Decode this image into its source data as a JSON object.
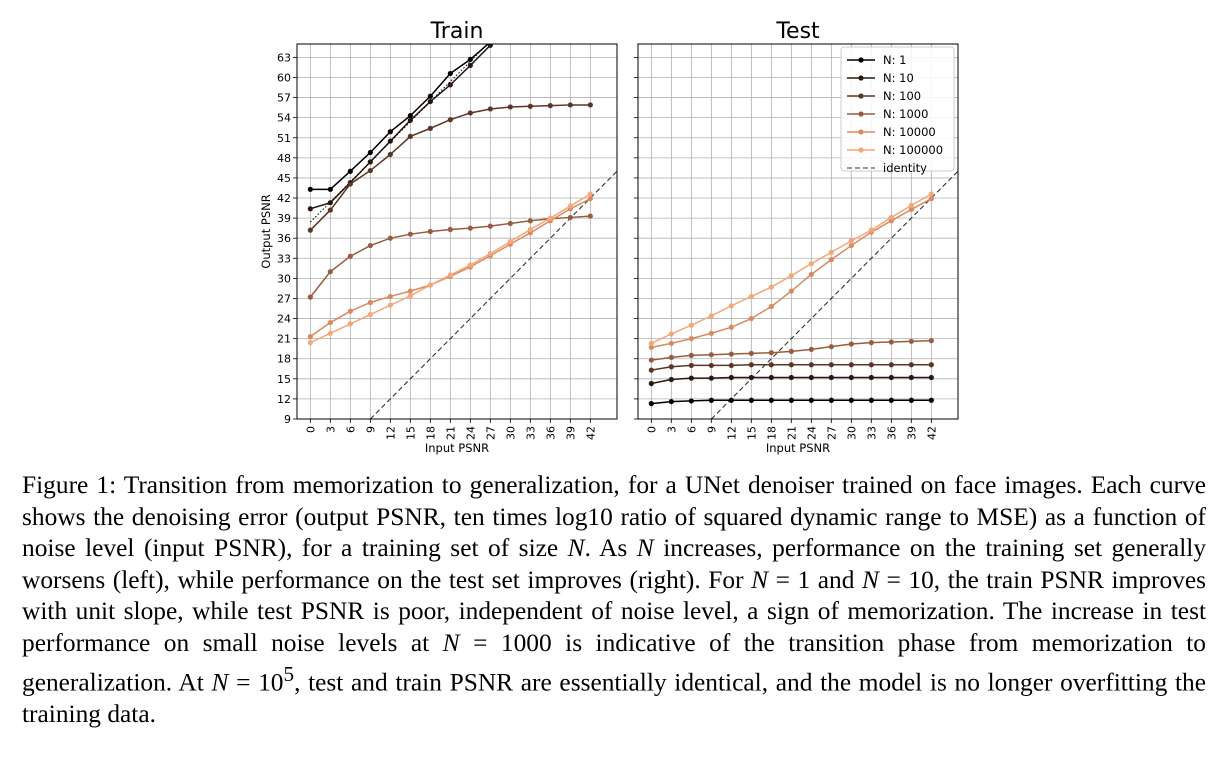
{
  "chart_data": [
    {
      "type": "line",
      "title": "Train",
      "xlabel": "Input PSNR",
      "ylabel": "Output PSNR",
      "xlim": [
        -2,
        46
      ],
      "ylim": [
        9,
        65
      ],
      "xticks": [
        "0",
        "3",
        "6",
        "9",
        "12",
        "15",
        "18",
        "21",
        "24",
        "27",
        "30",
        "33",
        "36",
        "39",
        "42"
      ],
      "yticks": [
        "9",
        "12",
        "15",
        "18",
        "21",
        "24",
        "27",
        "30",
        "33",
        "36",
        "39",
        "42",
        "45",
        "48",
        "51",
        "54",
        "57",
        "60",
        "63"
      ],
      "grid": true,
      "x": [
        0,
        3,
        6,
        9,
        12,
        15,
        18,
        21,
        24,
        27,
        30,
        33,
        36,
        39,
        42
      ],
      "series": [
        {
          "name": "N: 1",
          "values": [
            43.3,
            43.3,
            46.0,
            48.8,
            51.9,
            54.3,
            57.2,
            60.6,
            62.7,
            65.3,
            null,
            null,
            null,
            null,
            null
          ]
        },
        {
          "name": "N: 10",
          "values": [
            40.4,
            41.3,
            44.3,
            47.4,
            50.5,
            53.6,
            56.4,
            58.9,
            61.8,
            64.8,
            null,
            null,
            null,
            null,
            null
          ]
        },
        {
          "name": "N: 100",
          "values": [
            37.2,
            40.2,
            44.1,
            46.1,
            48.5,
            51.2,
            52.4,
            53.7,
            54.7,
            55.3,
            55.6,
            55.7,
            55.8,
            55.9,
            55.9
          ]
        },
        {
          "name": "N: 1000",
          "values": [
            27.2,
            31.0,
            33.3,
            34.9,
            36.0,
            36.6,
            37.0,
            37.3,
            37.5,
            37.8,
            38.2,
            38.6,
            38.9,
            39.1,
            39.3
          ]
        },
        {
          "name": "N: 10000",
          "values": [
            21.3,
            23.4,
            25.1,
            26.4,
            27.3,
            28.1,
            29.0,
            30.3,
            31.7,
            33.4,
            35.1,
            36.8,
            38.6,
            40.4,
            41.9
          ]
        },
        {
          "name": "N: 100000",
          "values": [
            20.4,
            21.8,
            23.2,
            24.6,
            26.0,
            27.4,
            29.0,
            30.5,
            32.0,
            33.7,
            35.5,
            37.3,
            39.0,
            40.8,
            42.6
          ]
        }
      ]
    },
    {
      "type": "line",
      "title": "Test",
      "xlabel": "Input PSNR",
      "ylabel": "",
      "xlim": [
        -2,
        46
      ],
      "ylim": [
        9,
        65
      ],
      "xticks": [
        "0",
        "3",
        "6",
        "9",
        "12",
        "15",
        "18",
        "21",
        "24",
        "27",
        "30",
        "33",
        "36",
        "39",
        "42"
      ],
      "grid": true,
      "legend": "top-right",
      "x": [
        0,
        3,
        6,
        9,
        12,
        15,
        18,
        21,
        24,
        27,
        30,
        33,
        36,
        39,
        42
      ],
      "series": [
        {
          "name": "N: 1",
          "values": [
            11.3,
            11.6,
            11.7,
            11.8,
            11.8,
            11.8,
            11.8,
            11.8,
            11.8,
            11.8,
            11.8,
            11.8,
            11.8,
            11.8,
            11.8
          ]
        },
        {
          "name": "N: 10",
          "values": [
            14.3,
            14.9,
            15.1,
            15.1,
            15.2,
            15.2,
            15.2,
            15.2,
            15.2,
            15.2,
            15.2,
            15.2,
            15.2,
            15.2,
            15.2
          ]
        },
        {
          "name": "N: 100",
          "values": [
            16.3,
            16.8,
            17.0,
            17.0,
            17.0,
            17.1,
            17.1,
            17.1,
            17.1,
            17.1,
            17.1,
            17.1,
            17.1,
            17.1,
            17.1
          ]
        },
        {
          "name": "N: 1000",
          "values": [
            17.8,
            18.2,
            18.5,
            18.6,
            18.7,
            18.8,
            18.9,
            19.1,
            19.4,
            19.8,
            20.2,
            20.4,
            20.5,
            20.6,
            20.7
          ]
        },
        {
          "name": "N: 10000",
          "values": [
            19.7,
            20.3,
            21.0,
            21.8,
            22.7,
            24.0,
            25.8,
            28.1,
            30.6,
            32.8,
            34.9,
            36.9,
            38.6,
            40.3,
            41.9
          ]
        },
        {
          "name": "N: 100000",
          "values": [
            20.3,
            21.7,
            23.0,
            24.4,
            25.9,
            27.3,
            28.7,
            30.4,
            32.2,
            33.9,
            35.6,
            37.2,
            39.1,
            40.9,
            42.6
          ]
        }
      ],
      "identity_label": "identity"
    }
  ],
  "series_colors": [
    "#000000",
    "#2b1911",
    "#5c3526",
    "#9a5c40",
    "#d98a5e",
    "#f5a67a"
  ],
  "caption": {
    "p1": "Figure 1: Transition from memorization to generalization, for a UNet denoiser trained on face images. Each curve shows the denoising error (output PSNR, ten times log10 ratio of squared dynamic range to MSE) as a function of noise level (input PSNR), for a training set of size ",
    "n1": "N",
    "p2": ". As ",
    "n2": "N",
    "p3": " increases, performance on the training set generally worsens (left), while performance on the test set improves (right). For ",
    "n3": "N",
    "p4": " = 1 and ",
    "n4": "N",
    "p5": " = 10, the train PSNR improves with unit slope, while test PSNR is poor, independent of noise level, a sign of memorization. The increase in test performance on small noise levels at ",
    "n5": "N",
    "p6": " = 1000 is indicative of the transition phase from memorization to generalization. At ",
    "n6": "N",
    "p7": " = 10",
    "sup": "5",
    "p8": ", test and train PSNR are essentially identical, and the model is no longer overfitting the training data."
  }
}
